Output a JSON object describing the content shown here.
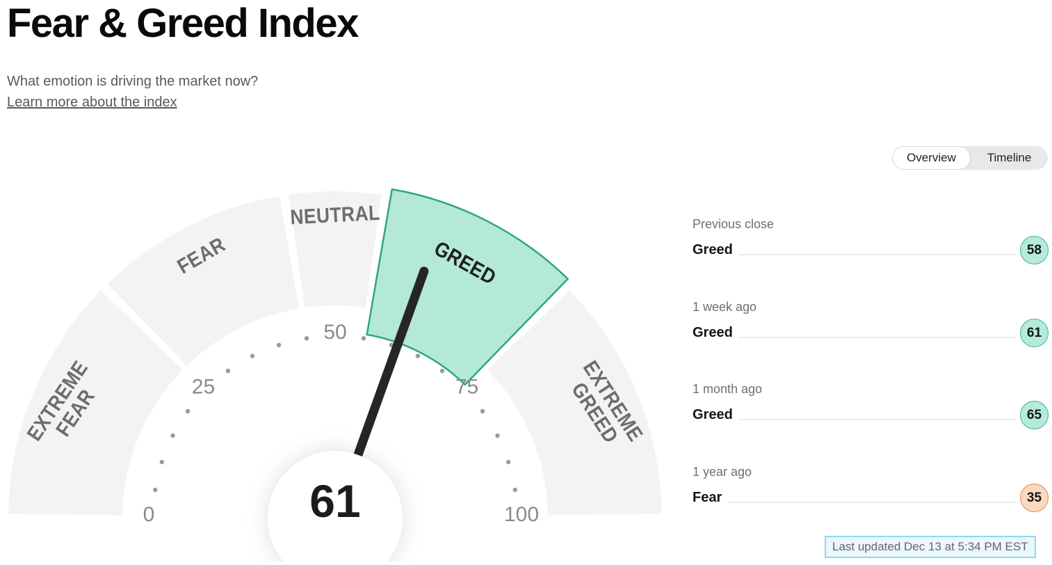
{
  "header": {
    "title": "Fear & Greed Index",
    "subtitle": "What emotion is driving the market now?",
    "link": "Learn more about the index"
  },
  "tabs": {
    "overview": "Overview",
    "timeline": "Timeline",
    "selected": "Overview"
  },
  "history": [
    {
      "label": "Previous close",
      "sentiment": "Greed",
      "value": 58,
      "tone": "greed"
    },
    {
      "label": "1 week ago",
      "sentiment": "Greed",
      "value": 61,
      "tone": "greed"
    },
    {
      "label": "1 month ago",
      "sentiment": "Greed",
      "value": 65,
      "tone": "greed"
    },
    {
      "label": "1 year ago",
      "sentiment": "Fear",
      "value": 35,
      "tone": "fear"
    }
  ],
  "last_updated": "Last updated Dec 13 at 5:34 PM EST",
  "colors": {
    "segment_fill": "#f3f3f3",
    "segment_highlight_fill": "#b4e8d8",
    "segment_highlight_stroke": "#2fa874",
    "segment_label": "#6d6d6d",
    "segment_highlight_label": "#1f1f1f",
    "tick_dot": "#9a9a9a",
    "tick_text": "#8a8a8a",
    "needle": "#262626",
    "value_text": "#1c1c1c",
    "badge": {
      "greed": {
        "fill": "#b5ebd9",
        "stroke": "#45b18b"
      },
      "fear": {
        "fill": "#fad9c2",
        "stroke": "#dd8a50"
      }
    },
    "last_updated_border": "#8fd9e9",
    "last_updated_bg": "#ebf7fc"
  },
  "chart_data": {
    "type": "gauge",
    "title": "Fear & Greed Index",
    "value": 61,
    "value_label": "61",
    "min": 0,
    "max": 100,
    "tick_labels": [
      0,
      25,
      50,
      75,
      100
    ],
    "minor_tick_step": 5,
    "segments": [
      {
        "label": "EXTREME FEAR",
        "label_lines": [
          "EXTREME",
          "FEAR"
        ],
        "from": 0,
        "to": 25,
        "highlighted": false
      },
      {
        "label": "FEAR",
        "label_lines": [
          "FEAR"
        ],
        "from": 25,
        "to": 45,
        "highlighted": false
      },
      {
        "label": "NEUTRAL",
        "label_lines": [
          "NEUTRAL"
        ],
        "from": 45,
        "to": 55,
        "highlighted": false
      },
      {
        "label": "GREED",
        "label_lines": [
          "GREED"
        ],
        "from": 55,
        "to": 75,
        "highlighted": true
      },
      {
        "label": "EXTREME GREED",
        "label_lines": [
          "EXTREME",
          "GREED"
        ],
        "from": 75,
        "to": 100,
        "highlighted": false
      }
    ]
  }
}
